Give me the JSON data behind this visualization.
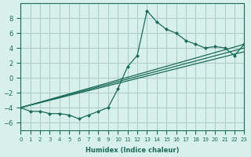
{
  "xlabel": "Humidex (Indice chaleur)",
  "ylabel": "",
  "bg_color": "#d8f0ec",
  "grid_color": "#b0ccc8",
  "line_color": "#1a6b5a",
  "xlim": [
    0,
    23
  ],
  "ylim": [
    -7,
    10
  ],
  "yticks": [
    -6,
    -4,
    -2,
    0,
    2,
    4,
    6,
    8
  ],
  "xticks": [
    0,
    1,
    2,
    3,
    4,
    5,
    6,
    7,
    8,
    9,
    10,
    11,
    12,
    13,
    14,
    15,
    16,
    17,
    18,
    19,
    20,
    21,
    22,
    23
  ],
  "series1_x": [
    0,
    1,
    2,
    3,
    4,
    5,
    6,
    7,
    8,
    9,
    10,
    11,
    12,
    13,
    14,
    15,
    16,
    17,
    18,
    19,
    20,
    21,
    22,
    23
  ],
  "series1_y": [
    -4,
    -4.5,
    -4.5,
    -4.8,
    -4.8,
    -5,
    -5.5,
    -5,
    -4.5,
    -4,
    -1.5,
    1.5,
    3,
    9,
    7.5,
    6.5,
    6,
    5,
    4.5,
    4,
    4.2,
    4,
    3,
    4.5
  ],
  "series3_x": [
    0,
    23
  ],
  "series3_y": [
    -4,
    4.5
  ],
  "series4_x": [
    0,
    23
  ],
  "series4_y": [
    -4,
    4.0
  ],
  "series5_x": [
    0,
    23
  ],
  "series5_y": [
    -4,
    3.5
  ]
}
